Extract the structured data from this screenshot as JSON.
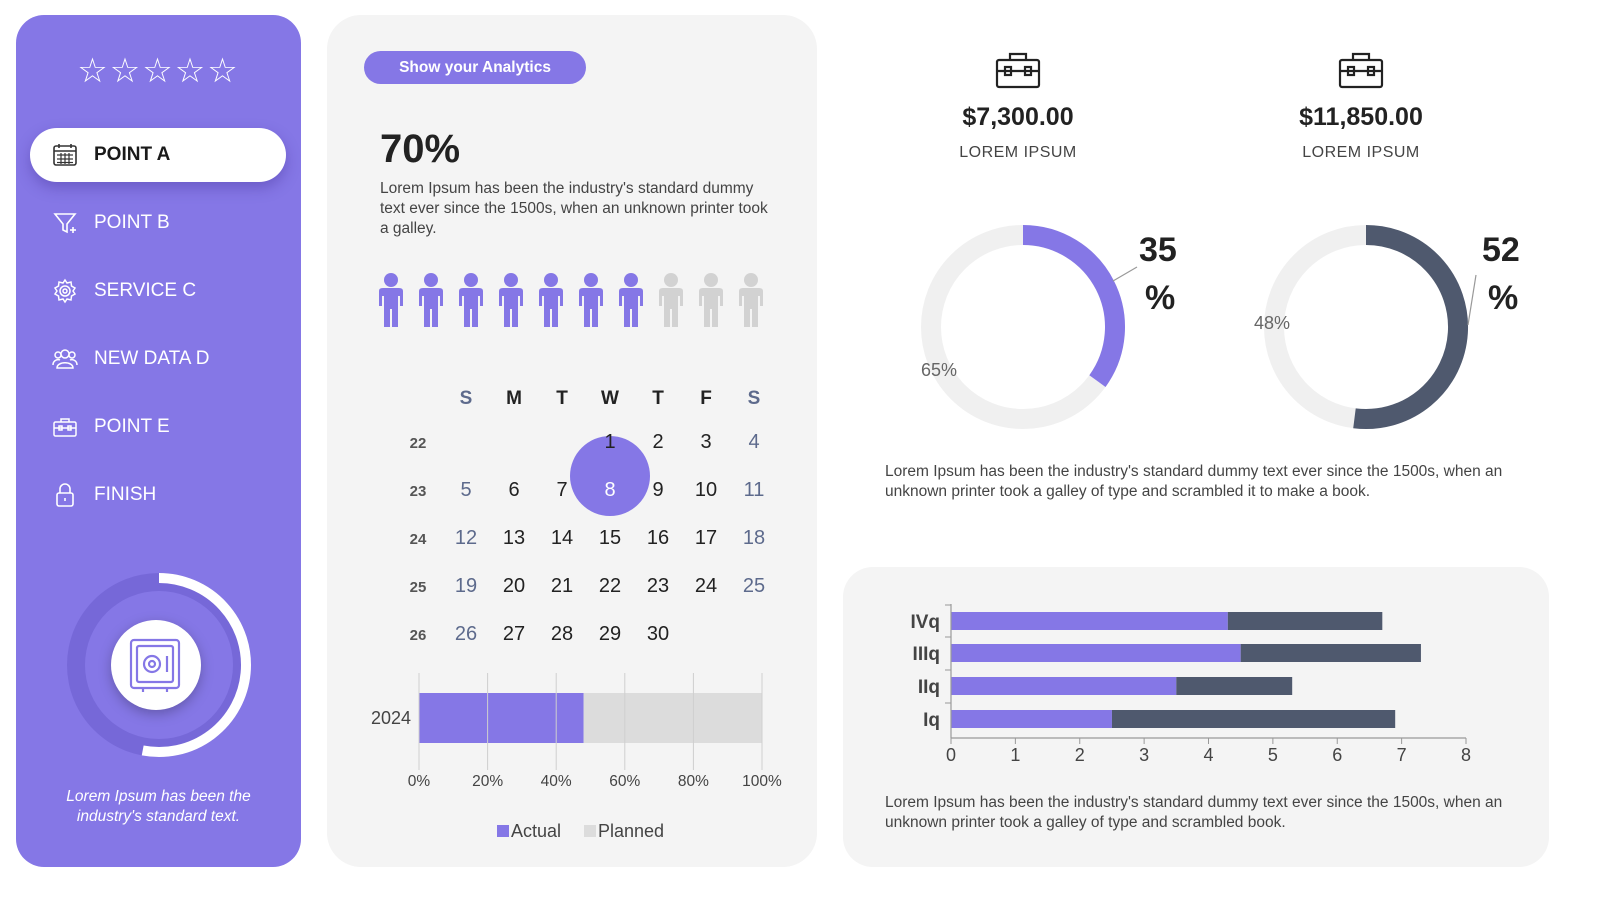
{
  "sidebar": {
    "rating_stars": "☆☆☆☆☆",
    "items": [
      {
        "label": "POINT A",
        "icon": "calendar-icon",
        "active": true
      },
      {
        "label": "POINT B",
        "icon": "funnel-icon",
        "active": false
      },
      {
        "label": "SERVICE C",
        "icon": "settings-gear-icon",
        "active": false
      },
      {
        "label": "NEW DATA D",
        "icon": "users-icon",
        "active": false
      },
      {
        "label": "POINT E",
        "icon": "toolbox-icon",
        "active": false
      },
      {
        "label": "FINISH",
        "icon": "lock-icon",
        "active": false
      }
    ],
    "ring_progress": 0.53,
    "caption": "Lorem Ipsum has been the industry's standard text."
  },
  "analytics": {
    "button_label": "Show your Analytics",
    "percent": "70%",
    "description": "Lorem Ipsum has been the industry's standard dummy text ever since the 1500s, when an unknown printer took a galley.",
    "people_total": 10,
    "people_filled": 7
  },
  "calendar": {
    "weekdays": [
      "S",
      "M",
      "T",
      "W",
      "T",
      "F",
      "S"
    ],
    "weeks": [
      {
        "no": "22",
        "days": [
          "",
          "",
          "",
          "1",
          "2",
          "3",
          "4"
        ]
      },
      {
        "no": "23",
        "days": [
          "5",
          "6",
          "7",
          "8",
          "9",
          "10",
          "11"
        ]
      },
      {
        "no": "24",
        "days": [
          "12",
          "13",
          "14",
          "15",
          "16",
          "17",
          "18"
        ]
      },
      {
        "no": "25",
        "days": [
          "19",
          "20",
          "21",
          "22",
          "23",
          "24",
          "25"
        ]
      },
      {
        "no": "26",
        "days": [
          "26",
          "27",
          "28",
          "29",
          "30",
          "",
          ""
        ]
      }
    ],
    "selected": "8"
  },
  "stats": [
    {
      "amount": "$7,300.00",
      "label": "LOREM IPSUM",
      "icon": "toolbox-icon"
    },
    {
      "amount": "$11,850.00",
      "label": "LOREM IPSUM",
      "icon": "toolbox-icon"
    }
  ],
  "donuts": [
    {
      "big_label_top": "35",
      "big_label_bottom": "%",
      "small_label": "65%",
      "value": 35,
      "color": "#8577e6"
    },
    {
      "big_label_top": "52",
      "big_label_bottom": "%",
      "small_label": "48%",
      "value": 52,
      "color": "#4f596e"
    }
  ],
  "right_desc_top": "Lorem Ipsum has been the industry's standard dummy text ever since the 1500s, when an unknown printer took a galley of type and scrambled it to make a book.",
  "right_desc_bottom": "Lorem Ipsum has been the industry's standard dummy text ever since the 1500s, when an unknown printer took a galley of type and scrambled book.",
  "colors": {
    "accent": "#8577e6",
    "dark": "#4f596e",
    "light_gray": "#dcdcdc",
    "panel": "#f4f4f4"
  },
  "chart_data": [
    {
      "type": "bar",
      "orientation": "horizontal",
      "stacked": true,
      "categories": [
        "2024"
      ],
      "series": [
        {
          "name": "Actual",
          "values": [
            48
          ],
          "color": "#8577e6"
        },
        {
          "name": "Planned",
          "values": [
            52
          ],
          "color": "#dcdcdc"
        }
      ],
      "xlim": [
        0,
        100
      ],
      "xticks": [
        "0%",
        "20%",
        "40%",
        "60%",
        "80%",
        "100%"
      ],
      "legend": "bottom",
      "grid": true
    },
    {
      "type": "bar",
      "orientation": "horizontal",
      "stacked": true,
      "categories": [
        "IVq",
        "IIIq",
        "IIq",
        "Iq"
      ],
      "series": [
        {
          "values": [
            4.3,
            4.5,
            3.5,
            2.5
          ],
          "color": "#8577e6"
        },
        {
          "values": [
            2.4,
            2.8,
            1.8,
            4.4
          ],
          "color": "#4f596e"
        }
      ],
      "xlim": [
        0,
        8
      ],
      "xticks": [
        "0",
        "1",
        "2",
        "3",
        "4",
        "5",
        "6",
        "7",
        "8"
      ],
      "grid": false
    }
  ]
}
